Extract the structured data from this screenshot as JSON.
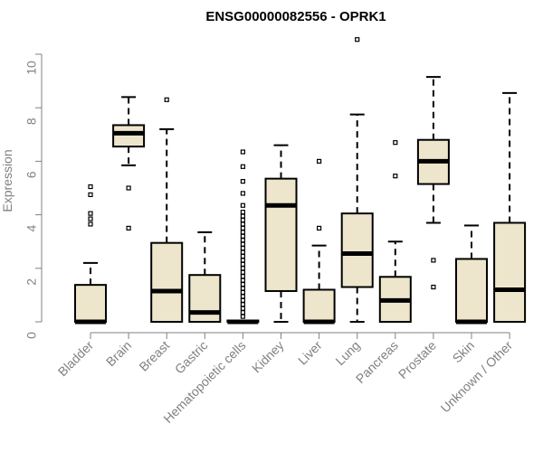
{
  "chart_data": {
    "type": "boxplot",
    "title": "ENSG00000082556 - OPRK1",
    "xlabel": "",
    "ylabel": "Expression",
    "ylim": [
      0,
      10.5
    ],
    "yticks": [
      "0",
      "2",
      "4",
      "6",
      "8",
      "10"
    ],
    "categories": [
      "Bladder",
      "Brain",
      "Breast",
      "Gastric",
      "Hematopoietic cells",
      "Kidney",
      "Liver",
      "Lung",
      "Pancreas",
      "Prostate",
      "Skin",
      "Unknown / Other"
    ],
    "boxes": [
      {
        "name": "Bladder",
        "q1": 0,
        "median": 0,
        "q3": 1.38,
        "whisker_low": 0,
        "whisker_high": 2.2,
        "outliers": [
          3.65,
          3.85,
          4.05,
          4.75,
          5.05
        ]
      },
      {
        "name": "Brain",
        "q1": 6.55,
        "median": 7.05,
        "q3": 7.35,
        "whisker_low": 5.85,
        "whisker_high": 8.4,
        "outliers": [
          5.0,
          3.5
        ]
      },
      {
        "name": "Breast",
        "q1": 0,
        "median": 1.15,
        "q3": 2.95,
        "whisker_low": 0,
        "whisker_high": 7.2,
        "outliers": [
          8.3
        ]
      },
      {
        "name": "Gastric",
        "q1": 0,
        "median": 0.35,
        "q3": 1.75,
        "whisker_low": 0,
        "whisker_high": 3.35,
        "outliers": []
      },
      {
        "name": "Hematopoietic cells",
        "q1": 0,
        "median": 0,
        "q3": 0.05,
        "whisker_low": 0,
        "whisker_high": 0.05,
        "outliers": [
          0.2,
          0.35,
          0.5,
          0.65,
          0.8,
          0.95,
          1.1,
          1.25,
          1.4,
          1.55,
          1.7,
          1.85,
          2.0,
          2.15,
          2.3,
          2.45,
          2.6,
          2.75,
          2.9,
          3.05,
          3.2,
          3.35,
          3.5,
          3.65,
          3.8,
          3.95,
          4.1,
          4.35,
          4.8,
          5.25,
          5.8,
          6.35
        ]
      },
      {
        "name": "Kidney",
        "q1": 1.15,
        "median": 4.35,
        "q3": 5.35,
        "whisker_low": 0,
        "whisker_high": 6.6,
        "outliers": []
      },
      {
        "name": "Liver",
        "q1": 0,
        "median": 0,
        "q3": 1.2,
        "whisker_low": 0,
        "whisker_high": 2.85,
        "outliers": [
          3.5,
          6.0
        ]
      },
      {
        "name": "Lung",
        "q1": 1.3,
        "median": 2.55,
        "q3": 4.05,
        "whisker_low": 0,
        "whisker_high": 7.75,
        "outliers": [
          10.55
        ]
      },
      {
        "name": "Pancreas",
        "q1": 0,
        "median": 0.8,
        "q3": 1.68,
        "whisker_low": 0,
        "whisker_high": 3.0,
        "outliers": [
          5.45,
          6.7
        ]
      },
      {
        "name": "Prostate",
        "q1": 5.15,
        "median": 6.0,
        "q3": 6.8,
        "whisker_low": 3.7,
        "whisker_high": 9.15,
        "outliers": [
          2.3,
          1.3
        ]
      },
      {
        "name": "Skin",
        "q1": 0,
        "median": 0,
        "q3": 2.35,
        "whisker_low": 0,
        "whisker_high": 3.6,
        "outliers": []
      },
      {
        "name": "Unknown / Other",
        "q1": 0,
        "median": 1.2,
        "q3": 3.7,
        "whisker_low": 0,
        "whisker_high": 8.55,
        "outliers": []
      }
    ],
    "colors": {
      "box_fill": "#ede6cc",
      "box_stroke": "#000000",
      "median": "#000000",
      "axis": "#808080",
      "text": "#808080",
      "title": "#000000"
    }
  }
}
